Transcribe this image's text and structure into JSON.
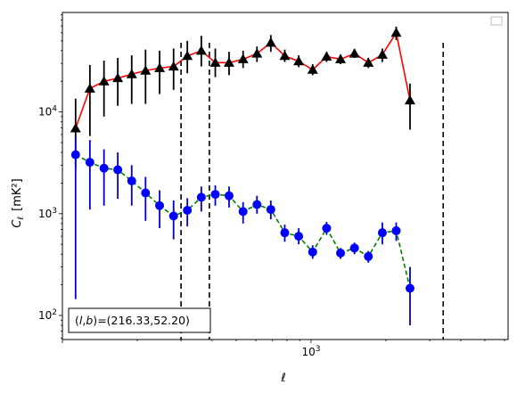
{
  "chart_data": {
    "type": "scatter",
    "xscale": "log",
    "yscale": "log",
    "xlim": [
      100,
      6200
    ],
    "ylim": [
      58,
      95000
    ],
    "xlabel": "ℓ",
    "ylabel": "C_ℓ [mK²]",
    "ylabel_main": "C",
    "ylabel_sub": "ℓ",
    "ylabel_units": "[mK²]",
    "x_tick_labels": [
      {
        "value": 1000,
        "base": "10",
        "exp": "3"
      }
    ],
    "y_tick_labels": [
      {
        "value": 100,
        "base": "10",
        "exp": "2"
      },
      {
        "value": 1000,
        "base": "10",
        "exp": "3"
      },
      {
        "value": 10000,
        "base": "10",
        "exp": "4"
      }
    ],
    "annotation": "(l,b)=(216.33,52.20)",
    "annotation_parts": {
      "l": "l",
      "b": "b",
      "values": "=(216.33,52.20)"
    },
    "legend": "top-right, empty",
    "vlines_x": [
      300,
      390,
      3400
    ],
    "series": [
      {
        "color": "#ff0000",
        "marker": "triangle",
        "marker_color": "#000000",
        "errorbar_color": "#000000",
        "linestyle": "solid",
        "points": [
          {
            "x": 113,
            "y": 6900,
            "lo": 2800,
            "hi": 13500
          },
          {
            "x": 129,
            "y": 17000,
            "lo": 5800,
            "hi": 29000
          },
          {
            "x": 147,
            "y": 20000,
            "lo": 9000,
            "hi": 32000
          },
          {
            "x": 167,
            "y": 21500,
            "lo": 11500,
            "hi": 34000
          },
          {
            "x": 190,
            "y": 23500,
            "lo": 12000,
            "hi": 36000
          },
          {
            "x": 216,
            "y": 25500,
            "lo": 12000,
            "hi": 41000
          },
          {
            "x": 246,
            "y": 27000,
            "lo": 15000,
            "hi": 40000
          },
          {
            "x": 280,
            "y": 28000,
            "lo": 16500,
            "hi": 42000
          },
          {
            "x": 318,
            "y": 35500,
            "lo": 24000,
            "hi": 50000
          },
          {
            "x": 362,
            "y": 40000,
            "lo": 28000,
            "hi": 56000
          },
          {
            "x": 412,
            "y": 30500,
            "lo": 22000,
            "hi": 42000
          },
          {
            "x": 468,
            "y": 30500,
            "lo": 23000,
            "hi": 39000
          },
          {
            "x": 533,
            "y": 33000,
            "lo": 27000,
            "hi": 40000
          },
          {
            "x": 606,
            "y": 37500,
            "lo": 31000,
            "hi": 44000
          },
          {
            "x": 689,
            "y": 48000,
            "lo": 39000,
            "hi": 57000
          },
          {
            "x": 784,
            "y": 35500,
            "lo": 31000,
            "hi": 41000
          },
          {
            "x": 892,
            "y": 31500,
            "lo": 27500,
            "hi": 36000
          },
          {
            "x": 1015,
            "y": 26000,
            "lo": 23000,
            "hi": 29500
          },
          {
            "x": 1155,
            "y": 35000,
            "lo": 31000,
            "hi": 39000
          },
          {
            "x": 1314,
            "y": 33000,
            "lo": 29500,
            "hi": 36500
          },
          {
            "x": 1495,
            "y": 37500,
            "lo": 34000,
            "hi": 41500
          },
          {
            "x": 1700,
            "y": 30500,
            "lo": 27000,
            "hi": 34000
          },
          {
            "x": 1935,
            "y": 36500,
            "lo": 31000,
            "hi": 42000
          },
          {
            "x": 2200,
            "y": 60000,
            "lo": 51000,
            "hi": 69000
          },
          {
            "x": 2500,
            "y": 13000,
            "lo": 6700,
            "hi": 19000
          }
        ]
      },
      {
        "color": "#008000",
        "marker": "circle",
        "marker_color": "#0000ff",
        "errorbar_color": "#0000cc",
        "linestyle": "dashed",
        "points": [
          {
            "x": 113,
            "y": 3800,
            "lo": 145,
            "hi": 5600
          },
          {
            "x": 129,
            "y": 3200,
            "lo": 1100,
            "hi": 5300
          },
          {
            "x": 147,
            "y": 2800,
            "lo": 1200,
            "hi": 4300
          },
          {
            "x": 167,
            "y": 2700,
            "lo": 1400,
            "hi": 4000
          },
          {
            "x": 190,
            "y": 2100,
            "lo": 1200,
            "hi": 3000
          },
          {
            "x": 216,
            "y": 1600,
            "lo": 850,
            "hi": 2300
          },
          {
            "x": 246,
            "y": 1200,
            "lo": 720,
            "hi": 1700
          },
          {
            "x": 280,
            "y": 950,
            "lo": 560,
            "hi": 1350
          },
          {
            "x": 318,
            "y": 1080,
            "lo": 750,
            "hi": 1420
          },
          {
            "x": 362,
            "y": 1450,
            "lo": 1050,
            "hi": 1850
          },
          {
            "x": 412,
            "y": 1550,
            "lo": 1200,
            "hi": 1900
          },
          {
            "x": 468,
            "y": 1500,
            "lo": 1150,
            "hi": 1850
          },
          {
            "x": 533,
            "y": 1050,
            "lo": 800,
            "hi": 1300
          },
          {
            "x": 606,
            "y": 1230,
            "lo": 1000,
            "hi": 1500
          },
          {
            "x": 689,
            "y": 1100,
            "lo": 880,
            "hi": 1350
          },
          {
            "x": 784,
            "y": 650,
            "lo": 530,
            "hi": 780
          },
          {
            "x": 892,
            "y": 600,
            "lo": 500,
            "hi": 720
          },
          {
            "x": 1015,
            "y": 420,
            "lo": 360,
            "hi": 490
          },
          {
            "x": 1155,
            "y": 720,
            "lo": 620,
            "hi": 830
          },
          {
            "x": 1314,
            "y": 410,
            "lo": 360,
            "hi": 460
          },
          {
            "x": 1495,
            "y": 460,
            "lo": 400,
            "hi": 520
          },
          {
            "x": 1700,
            "y": 380,
            "lo": 330,
            "hi": 430
          },
          {
            "x": 1935,
            "y": 650,
            "lo": 500,
            "hi": 820
          },
          {
            "x": 2200,
            "y": 680,
            "lo": 540,
            "hi": 820
          },
          {
            "x": 2500,
            "y": 185,
            "lo": 80,
            "hi": 300
          }
        ]
      }
    ]
  }
}
